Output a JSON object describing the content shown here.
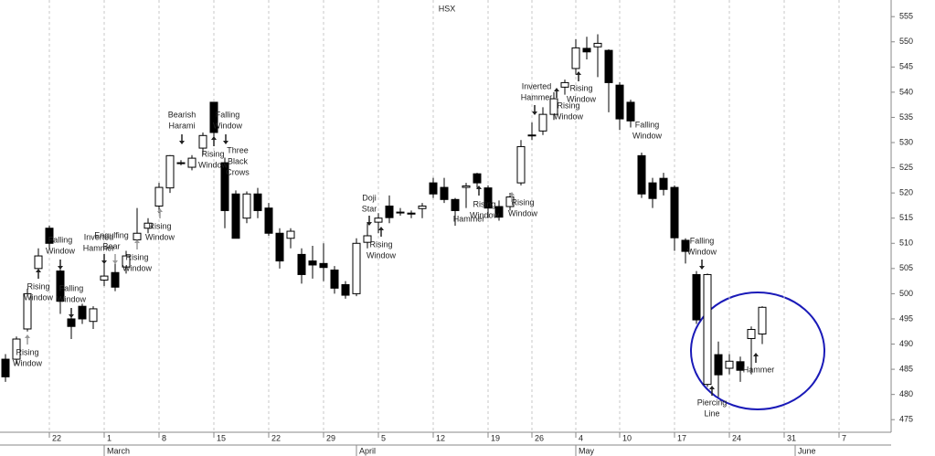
{
  "chart_data": {
    "type": "candlestick",
    "title": "HSX",
    "categories": [
      null,
      null,
      null,
      null,
      "22",
      null,
      null,
      null,
      null,
      "1",
      null,
      null,
      null,
      null,
      "8",
      null,
      null,
      null,
      null,
      "15",
      null,
      null,
      null,
      null,
      "22",
      null,
      null,
      null,
      null,
      "29",
      null,
      null,
      null,
      null,
      "5",
      null,
      null,
      null,
      null,
      "12",
      null,
      null,
      null,
      null,
      "19",
      null,
      null,
      null,
      "26",
      null,
      null,
      null,
      "4",
      null,
      null,
      null,
      "10",
      null,
      null,
      null,
      null,
      "17",
      null,
      null,
      null,
      null,
      "24",
      null,
      null,
      null,
      null,
      "31",
      null,
      null,
      null,
      null,
      "7",
      null
    ],
    "months": [
      null,
      null,
      null,
      null,
      null,
      null,
      null,
      null,
      null,
      "March",
      null,
      null,
      null,
      null,
      null,
      null,
      null,
      null,
      null,
      null,
      null,
      null,
      null,
      null,
      null,
      null,
      null,
      null,
      null,
      null,
      null,
      null,
      "April",
      null,
      null,
      null,
      null,
      null,
      null,
      null,
      null,
      null,
      null,
      null,
      null,
      null,
      null,
      null,
      null,
      null,
      null,
      null,
      "May",
      null,
      null,
      null,
      null,
      null,
      null,
      null,
      null,
      null,
      null,
      null,
      null,
      null,
      null,
      null,
      null,
      null,
      null,
      null,
      "June",
      null,
      null,
      null,
      null,
      null
    ],
    "open": [
      487,
      487,
      493,
      505,
      513,
      504.5,
      495,
      497.5,
      494.5,
      502.7,
      504.2,
      505.3,
      510.7,
      513,
      517.4,
      521,
      526,
      525.1,
      528.9,
      538,
      526,
      519.8,
      515,
      519.8,
      517,
      512,
      511,
      507.8,
      506.5,
      506,
      504.7,
      501.8,
      500,
      510.2,
      514.2,
      517.4,
      516.2,
      516,
      516.9,
      522,
      521.1,
      518.7,
      521.1,
      523.8,
      521,
      517.3,
      517.3,
      522,
      531.5,
      532.3,
      535.6,
      541,
      544.7,
      548.7,
      549,
      548.3,
      541.4,
      538,
      527.4,
      522,
      522.9,
      521.1,
      510.6,
      503.8,
      482,
      487.9,
      485.2,
      486.5,
      491.1,
      492,
      null,
      null,
      null,
      null,
      null,
      null,
      null,
      null
    ],
    "high": [
      488,
      491.5,
      501,
      509,
      513.5,
      505,
      496,
      498,
      497.5,
      506,
      506,
      508.5,
      517,
      515,
      522,
      527.5,
      526.5,
      527.5,
      532,
      538,
      527,
      520.5,
      520.3,
      521,
      518,
      513,
      513,
      509,
      509.5,
      510,
      505.5,
      502.5,
      511,
      514,
      516,
      519.5,
      517,
      516.5,
      518,
      523,
      523,
      519,
      522,
      524,
      521.5,
      518.5,
      520,
      530.5,
      534,
      537,
      540,
      542.5,
      550.5,
      551,
      551.5,
      548.5,
      542,
      538.5,
      528,
      523,
      524,
      521.5,
      511,
      504.5,
      504,
      490.5,
      488,
      487.5,
      493.5,
      497.5,
      null,
      null,
      null,
      null,
      null,
      null,
      null,
      null
    ],
    "low": [
      482.5,
      486,
      492.5,
      503,
      509,
      496,
      491,
      494,
      493,
      501.5,
      500.5,
      504,
      509,
      512,
      516,
      520,
      525.5,
      524.5,
      527.5,
      530,
      513,
      511,
      514,
      515,
      511.5,
      505,
      509,
      502,
      503,
      502.5,
      500,
      499,
      499.5,
      509,
      512,
      514,
      515.5,
      515,
      515,
      519,
      518,
      513.5,
      517,
      521,
      515,
      514.5,
      516.5,
      521.5,
      530.5,
      531.5,
      534.5,
      539.5,
      543.5,
      546.5,
      543,
      536,
      532.5,
      533,
      519,
      517,
      519.5,
      508.5,
      506,
      494,
      481.5,
      479.5,
      484,
      482.5,
      484,
      490,
      null,
      null,
      null,
      null,
      null,
      null,
      null,
      null
    ],
    "close": [
      483.5,
      491,
      500,
      507.5,
      510,
      498.5,
      493.5,
      495,
      497,
      503.5,
      501.3,
      507.5,
      512,
      514,
      521.1,
      527.4,
      526,
      526.9,
      531.4,
      532,
      516.5,
      511,
      519.8,
      516.5,
      512,
      506.5,
      512.4,
      503.8,
      505.7,
      505.2,
      501.1,
      499.7,
      510,
      511.5,
      515,
      515.1,
      516.1,
      515.8,
      517.4,
      519.8,
      518.7,
      516.5,
      521.4,
      522,
      517,
      515.2,
      519.2,
      529.2,
      531.4,
      535.6,
      538.7,
      541.9,
      548.8,
      548,
      549.7,
      541.9,
      534.7,
      534.3,
      519.8,
      518.9,
      520.7,
      511.1,
      508.4,
      494.8,
      503.8,
      483.9,
      486.6,
      484.8,
      492.9,
      497.3,
      null,
      null,
      null,
      null,
      null,
      null,
      null,
      null
    ],
    "up_color": "#ffffff",
    "down_color": "#000000",
    "ylim": [
      472.5,
      558.3
    ],
    "yticks": [
      475,
      480,
      485,
      490,
      495,
      500,
      505,
      510,
      515,
      520,
      525,
      530,
      535,
      540,
      545,
      550,
      555
    ],
    "annotations": [
      {
        "lines": [
          "Rising",
          "Window"
        ]
      },
      {
        "lines": [
          "Rising",
          "Window"
        ]
      },
      {
        "lines": [
          "Falling",
          "Window"
        ]
      },
      {
        "lines": [
          "Falling",
          "Window"
        ]
      },
      {
        "lines": [
          "Inverted",
          "Hammer"
        ]
      },
      {
        "lines": [
          "Engulfing",
          "Bear"
        ]
      },
      {
        "lines": [
          "Rising",
          "Window"
        ]
      },
      {
        "lines": [
          "Rising",
          "Window"
        ]
      },
      {
        "lines": [
          "Bearish",
          "Harami"
        ]
      },
      {
        "lines": [
          "Falling",
          "Window"
        ]
      },
      {
        "lines": [
          "Rising",
          "Window"
        ]
      },
      {
        "lines": [
          "Three",
          "Black",
          "Crows"
        ]
      },
      {
        "lines": [
          "Doji",
          "Star"
        ]
      },
      {
        "lines": [
          "Rising",
          "Window"
        ]
      },
      {
        "lines": [
          "Hammer"
        ]
      },
      {
        "lines": [
          "Rising",
          "Window"
        ]
      },
      {
        "lines": [
          "Rising",
          "Window"
        ]
      },
      {
        "lines": [
          "Inverted",
          "Hammer"
        ]
      },
      {
        "lines": [
          "Rising",
          "Window"
        ]
      },
      {
        "lines": [
          "Rising",
          "Window"
        ]
      },
      {
        "lines": [
          "Falling",
          "Window"
        ]
      },
      {
        "lines": [
          "Falling",
          "Window"
        ]
      },
      {
        "lines": [
          "Piercing",
          "Line"
        ]
      },
      {
        "lines": [
          "Hammer"
        ]
      }
    ]
  }
}
